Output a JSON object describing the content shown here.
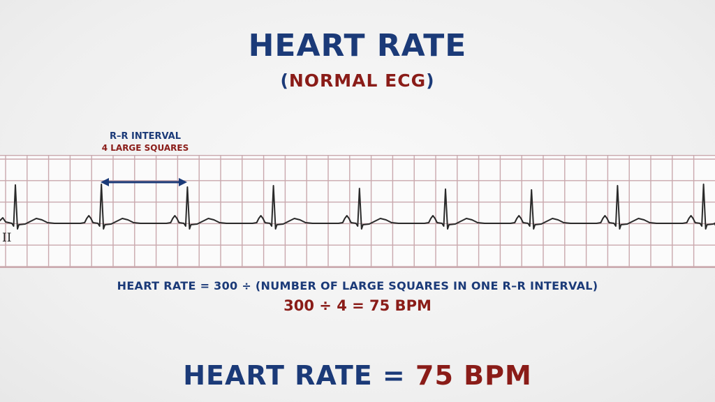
{
  "title": "HEART RATE",
  "subtitle": {
    "open": "(",
    "text": "NORMAL ECG",
    "close": ")"
  },
  "rr_annotation": {
    "line1": "R–R INTERVAL",
    "line2": "4 LARGE SQUARES"
  },
  "ecg": {
    "lead_label": "II",
    "grid_color": "#c9a8ad",
    "trace_color": "#2a2a2a",
    "arrow_color": "#1b3a78",
    "large_squares_per_rr": 4
  },
  "formula": "HEART RATE = 300 ÷ (NUMBER OF LARGE SQUARES IN ONE R–R INTERVAL)",
  "calculation": "300 ÷ 4 = 75 BPM",
  "result": {
    "label": "HEART RATE =",
    "value": "75 BPM"
  },
  "colors": {
    "navy": "#1b3a78",
    "maroon": "#8a1c18"
  }
}
